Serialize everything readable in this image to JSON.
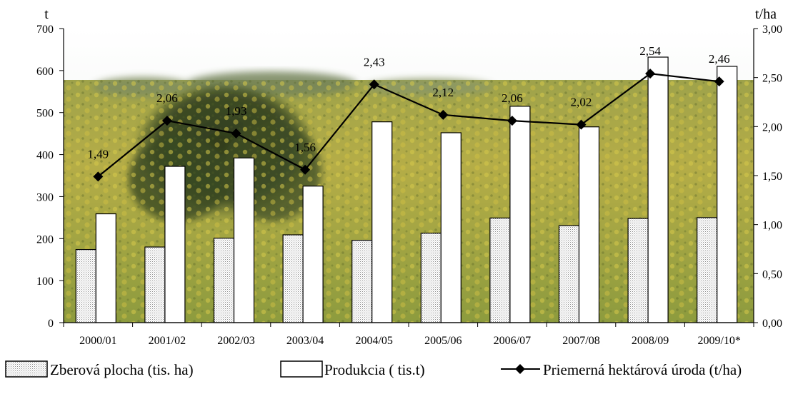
{
  "chart_data": {
    "type": "bar",
    "categories": [
      "2000/01",
      "2001/02",
      "2002/03",
      "2003/04",
      "2004/05",
      "2005/06",
      "2006/07",
      "2007/08",
      "2008/09",
      "2009/10*"
    ],
    "series": [
      {
        "name": "Zberová plocha (tis. ha)",
        "kind": "bar",
        "axis": "left",
        "pattern": "dotted",
        "values": [
          174,
          180,
          201,
          209,
          196,
          213,
          249,
          231,
          248,
          250
        ]
      },
      {
        "name": "Produkcia ( tis.t)",
        "kind": "bar",
        "axis": "left",
        "pattern": "white",
        "values": [
          259,
          372,
          392,
          325,
          478,
          452,
          515,
          466,
          632,
          610
        ]
      },
      {
        "name": "Priemerná hektárová úroda (t/ha)",
        "kind": "line",
        "axis": "right",
        "marker": "diamond",
        "values": [
          1.49,
          2.06,
          1.93,
          1.56,
          2.43,
          2.12,
          2.06,
          2.02,
          2.54,
          2.46
        ],
        "value_labels": [
          "1,49",
          "2,06",
          "1,93",
          "1,56",
          "2,43",
          "2,12",
          "2,06",
          "2,02",
          "2,54",
          "2,46"
        ]
      }
    ],
    "left_axis": {
      "unit": "t",
      "range": [
        0,
        700
      ],
      "ticks": [
        "0",
        "100",
        "200",
        "300",
        "400",
        "500",
        "600",
        "700"
      ]
    },
    "right_axis": {
      "unit": "t/ha",
      "range": [
        0,
        3
      ],
      "ticks": [
        "0,00",
        "0,50",
        "1,00",
        "1,50",
        "2,00",
        "2,50",
        "3,00"
      ]
    },
    "background": "photo of a sunflower field with a tree",
    "legend_position": "bottom",
    "grid": false
  },
  "colors": {
    "sky": "#f4f6f2",
    "field_yellow": "#b9b148",
    "field_green": "#6c7a34",
    "tree": "#3c4a22",
    "bar_outline": "#000000",
    "line": "#000000"
  }
}
